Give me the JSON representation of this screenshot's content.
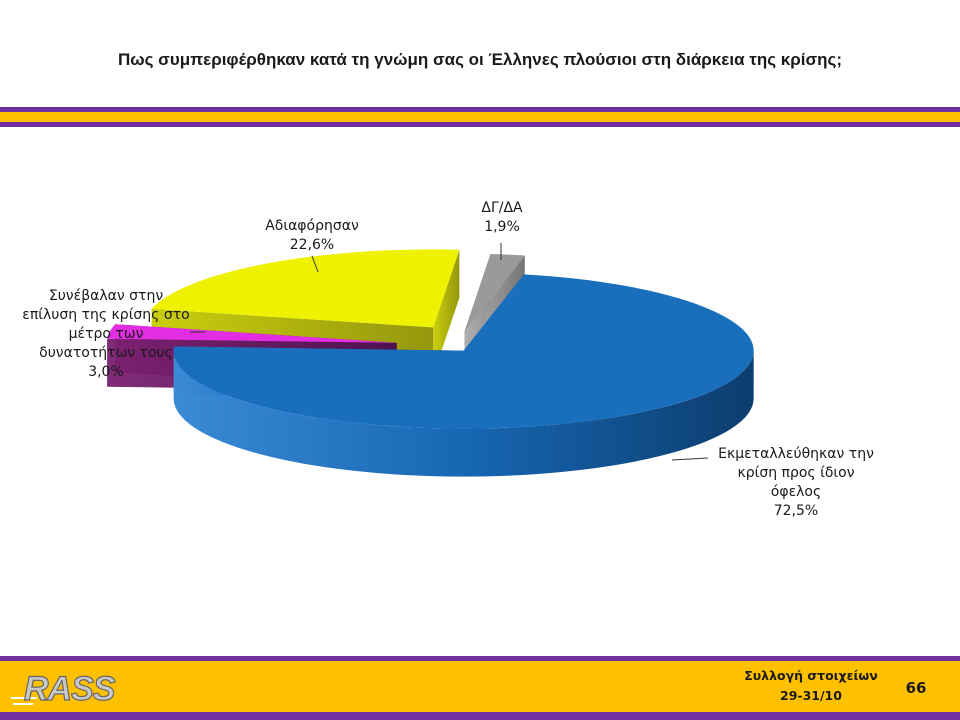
{
  "title": "Πως συμπεριφέρθηκαν κατά τη γνώμη σας οι Έλληνες πλούσιοι στη διάρκεια της κρίσης;",
  "colors": {
    "purple": "#7030a0",
    "gold": "#ffc000",
    "blue": "#1a6fbd",
    "yellow": "#eef200",
    "magenta": "#e22de2",
    "gray": "#9a9a9a"
  },
  "chart_data": {
    "type": "pie",
    "style": "3d exploded",
    "slices": [
      {
        "label_lines": [
          "Εκμεταλλεύθηκαν την",
          "κρίση προς ίδιον",
          "όφελος"
        ],
        "value": 72.5,
        "value_label": "72,5%",
        "color": "#1a6fbd"
      },
      {
        "label_lines": [
          "Συνέβαλαν στην",
          "επίλυση της κρίσης στο",
          "μέτρο των",
          "δυνατοτήτων τους"
        ],
        "value": 3.0,
        "value_label": "3,0%",
        "color": "#e22de2"
      },
      {
        "label_lines": [
          "Αδιαφόρησαν"
        ],
        "value": 22.6,
        "value_label": "22,6%",
        "color": "#eef200"
      },
      {
        "label_lines": [
          "ΔΓ/ΔΑ"
        ],
        "value": 1.9,
        "value_label": "1,9%",
        "color": "#9a9a9a"
      }
    ]
  },
  "footer": {
    "logo_text": "RASS",
    "line1": "Συλλογή στοιχείων",
    "line2": "29-31/10",
    "page_number": "66"
  }
}
